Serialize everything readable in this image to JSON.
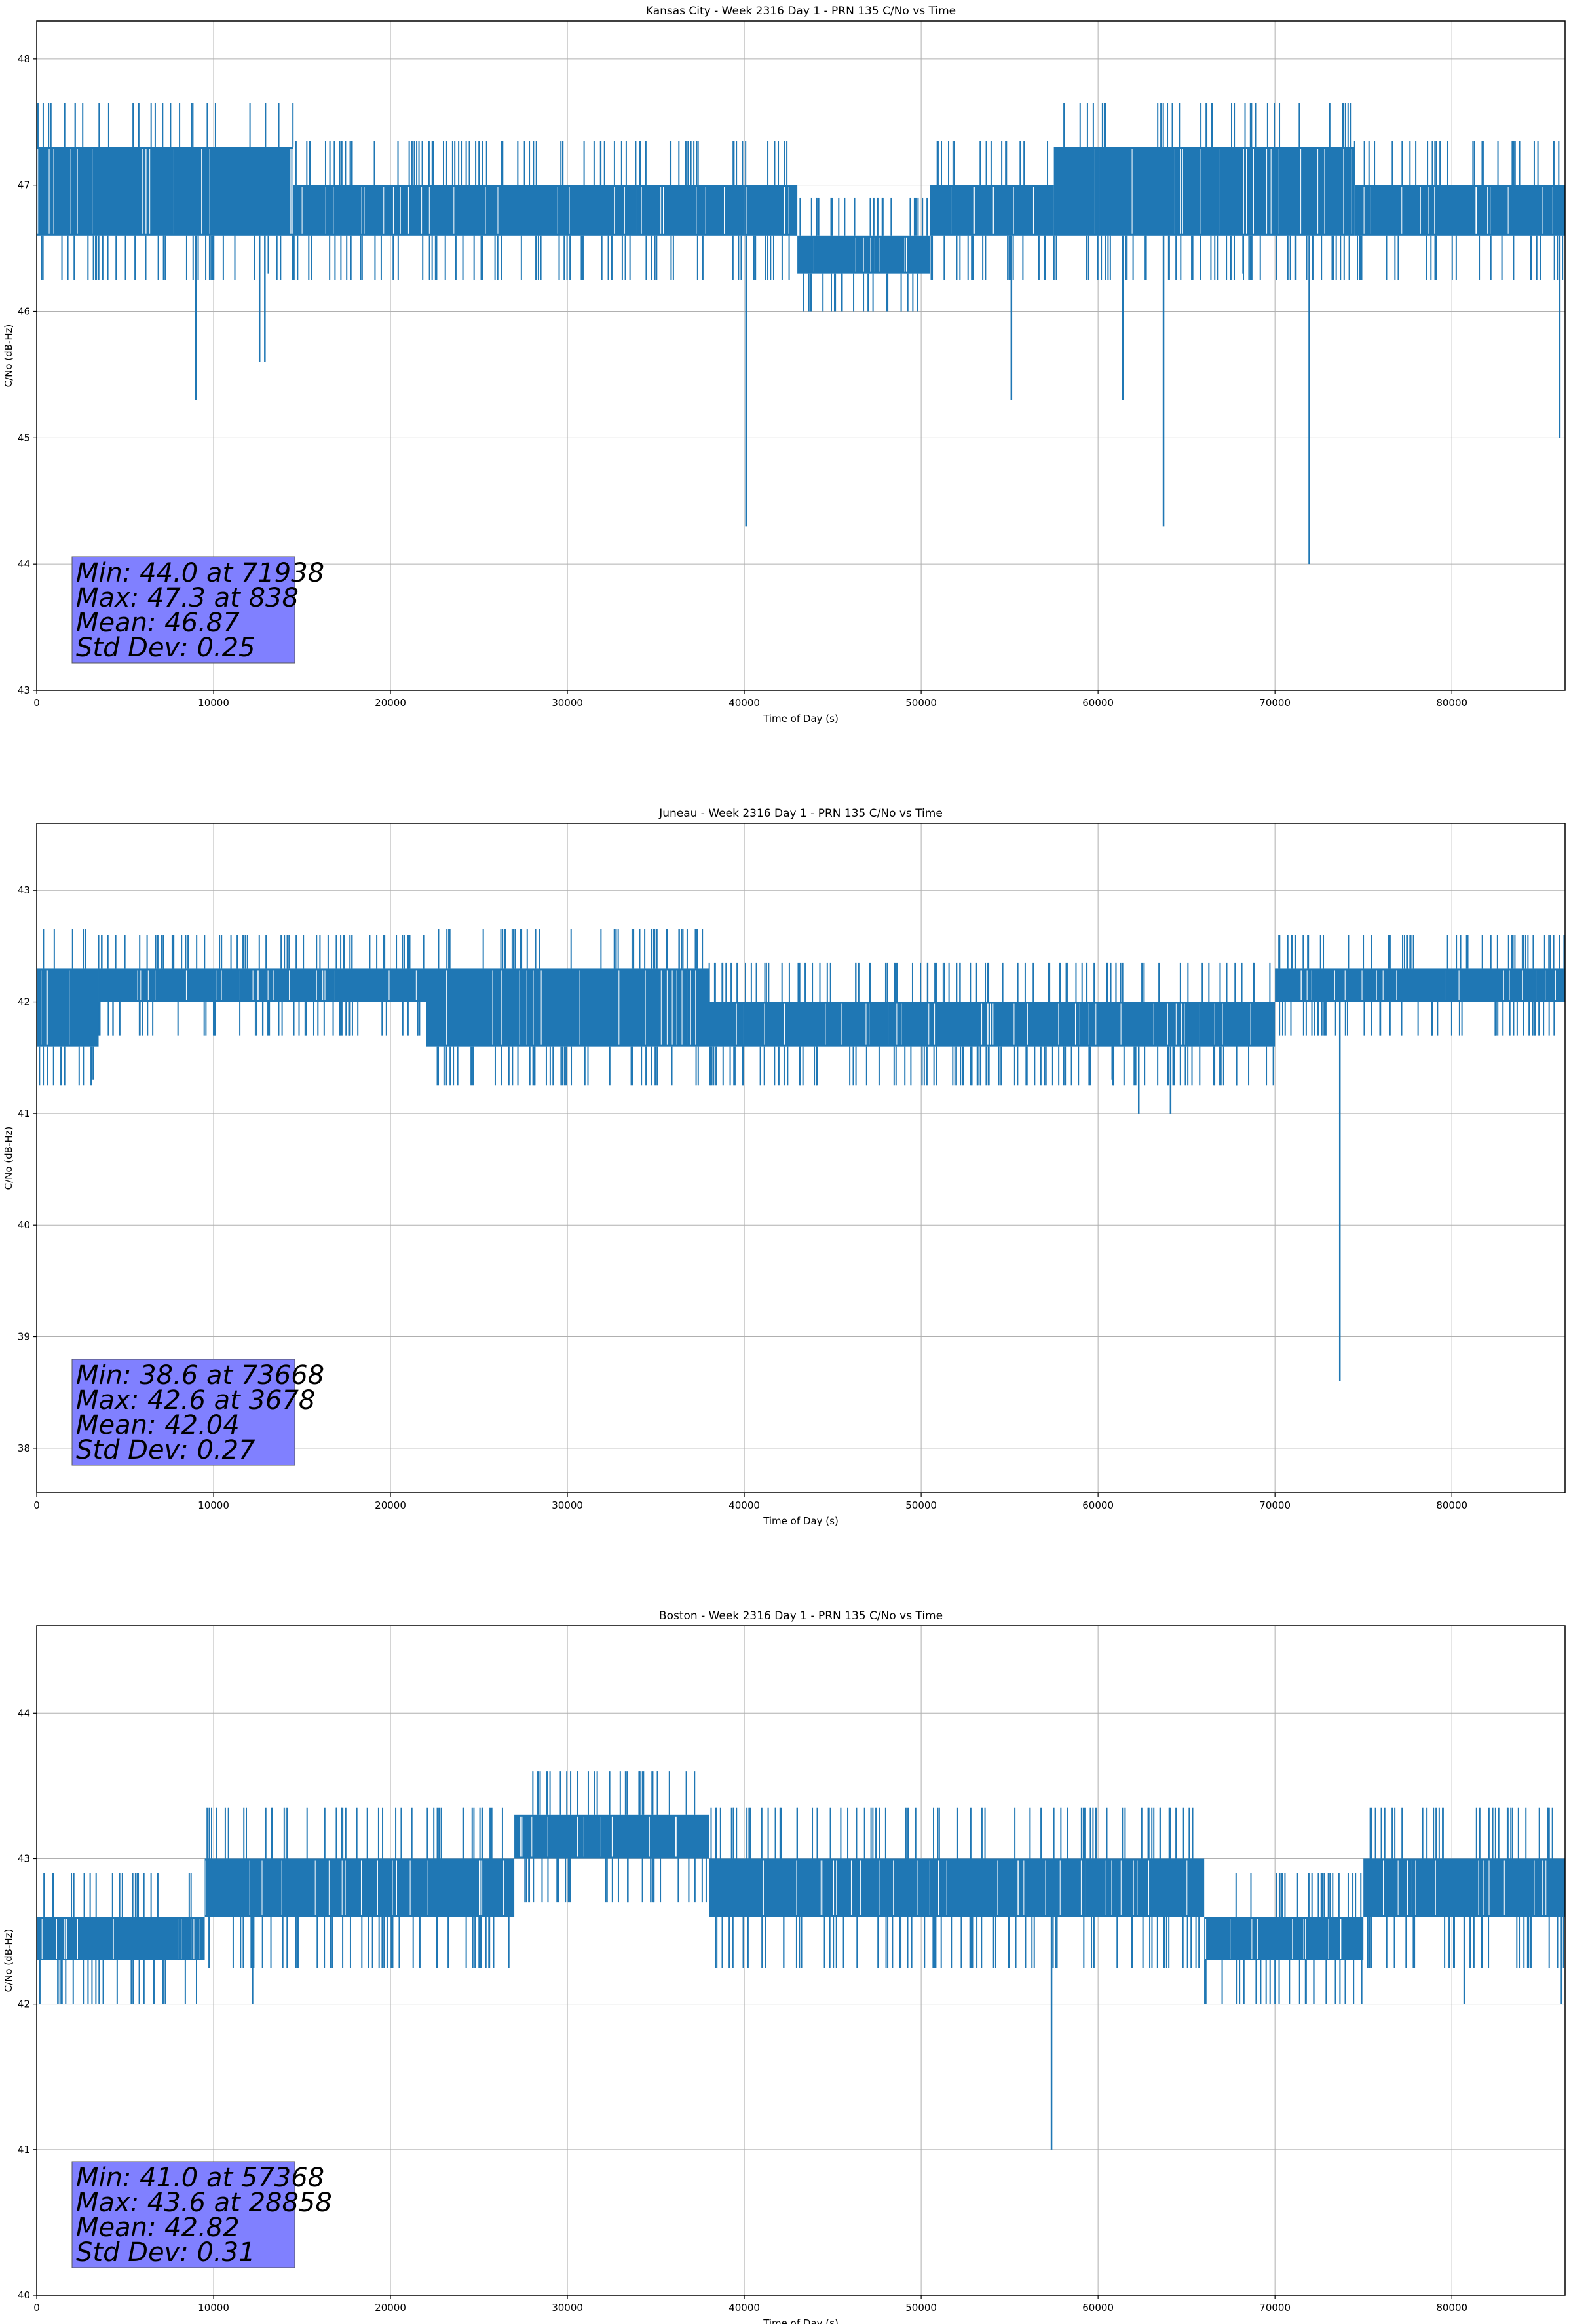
{
  "chart_data": [
    {
      "type": "line",
      "title": "Kansas City - Week 2316 Day 1 - PRN 135 C/No vs Time",
      "xlabel": "Time of Day (s)",
      "ylabel": "C/No (dB-Hz)",
      "xlim": [
        0,
        86400
      ],
      "ylim": [
        43,
        48.3
      ],
      "xticks": [
        0,
        10000,
        20000,
        30000,
        40000,
        50000,
        60000,
        70000,
        80000
      ],
      "yticks": [
        43,
        44,
        45,
        46,
        47,
        48
      ],
      "grid": true,
      "series_color": "#1f77b4",
      "stats_box_color": "#8080ff",
      "stats": [
        "Min: 44.0 at 71938",
        "Max: 47.3 at 838",
        "Mean: 46.87",
        "Std Dev: 0.25"
      ],
      "bands": [
        {
          "x": [
            0,
            14500
          ],
          "range": [
            46.6,
            47.3
          ]
        },
        {
          "x": [
            14500,
            40000
          ],
          "range": [
            46.6,
            47.0
          ]
        },
        {
          "x": [
            40000,
            43000
          ],
          "range": [
            46.6,
            47.0
          ]
        },
        {
          "x": [
            43000,
            50500
          ],
          "range": [
            46.3,
            46.6
          ]
        },
        {
          "x": [
            50500,
            57500
          ],
          "range": [
            46.6,
            47.0
          ]
        },
        {
          "x": [
            57500,
            74500
          ],
          "range": [
            46.6,
            47.3
          ]
        },
        {
          "x": [
            74500,
            86400
          ],
          "range": [
            46.6,
            47.0
          ]
        }
      ],
      "spikes": [
        {
          "x": 838,
          "y": 47.3
        },
        {
          "x": 9000,
          "y": 45.3
        },
        {
          "x": 12600,
          "y": 45.6
        },
        {
          "x": 12900,
          "y": 45.6
        },
        {
          "x": 13100,
          "y": 46.3
        },
        {
          "x": 40100,
          "y": 44.3
        },
        {
          "x": 45500,
          "y": 46.0
        },
        {
          "x": 55100,
          "y": 45.3
        },
        {
          "x": 61400,
          "y": 45.3
        },
        {
          "x": 63700,
          "y": 44.3
        },
        {
          "x": 68200,
          "y": 46.3
        },
        {
          "x": 71938,
          "y": 44.0
        },
        {
          "x": 86100,
          "y": 45.0
        }
      ]
    },
    {
      "type": "line",
      "title": "Juneau - Week 2316 Day 1 - PRN 135 C/No vs Time",
      "xlabel": "Time of Day (s)",
      "ylabel": "C/No (dB-Hz)",
      "xlim": [
        0,
        86400
      ],
      "ylim": [
        37.6,
        43.6
      ],
      "xticks": [
        0,
        10000,
        20000,
        30000,
        40000,
        50000,
        60000,
        70000,
        80000
      ],
      "yticks": [
        38,
        39,
        40,
        41,
        42,
        43
      ],
      "grid": true,
      "series_color": "#1f77b4",
      "stats_box_color": "#8080ff",
      "stats": [
        "Min: 38.6 at 73668",
        "Max: 42.6 at 3678",
        "Mean: 42.04",
        "Std Dev: 0.27"
      ],
      "bands": [
        {
          "x": [
            0,
            3500
          ],
          "range": [
            41.6,
            42.3
          ]
        },
        {
          "x": [
            3500,
            22000
          ],
          "range": [
            42.0,
            42.3
          ]
        },
        {
          "x": [
            22000,
            38000
          ],
          "range": [
            41.6,
            42.3
          ]
        },
        {
          "x": [
            38000,
            70000
          ],
          "range": [
            41.6,
            42.0
          ]
        },
        {
          "x": [
            70000,
            86400
          ],
          "range": [
            42.0,
            42.3
          ]
        }
      ],
      "spikes": [
        {
          "x": 3678,
          "y": 42.6
        },
        {
          "x": 3200,
          "y": 41.3
        },
        {
          "x": 60800,
          "y": 41.3
        },
        {
          "x": 62300,
          "y": 41.0
        },
        {
          "x": 64100,
          "y": 41.0
        },
        {
          "x": 73668,
          "y": 38.6
        }
      ]
    },
    {
      "type": "line",
      "title": "Boston - Week 2316 Day 1 - PRN 135 C/No vs Time",
      "xlabel": "Time of Day (s)",
      "ylabel": "C/No (dB-Hz)",
      "xlim": [
        0,
        86400
      ],
      "ylim": [
        40,
        44.6
      ],
      "xticks": [
        0,
        10000,
        20000,
        30000,
        40000,
        50000,
        60000,
        70000,
        80000
      ],
      "yticks": [
        40,
        41,
        42,
        43,
        44
      ],
      "grid": true,
      "series_color": "#1f77b4",
      "stats_box_color": "#8080ff",
      "stats": [
        "Min: 41.0 at 57368",
        "Max: 43.6 at 28858",
        "Mean: 42.82",
        "Std Dev: 0.31"
      ],
      "bands": [
        {
          "x": [
            0,
            9500
          ],
          "range": [
            42.3,
            42.6
          ]
        },
        {
          "x": [
            9500,
            27000
          ],
          "range": [
            42.6,
            43.0
          ]
        },
        {
          "x": [
            27000,
            38000
          ],
          "range": [
            43.0,
            43.3
          ]
        },
        {
          "x": [
            38000,
            66000
          ],
          "range": [
            42.6,
            43.0
          ]
        },
        {
          "x": [
            66000,
            75000
          ],
          "range": [
            42.3,
            42.6
          ]
        },
        {
          "x": [
            75000,
            86400
          ],
          "range": [
            42.6,
            43.0
          ]
        }
      ],
      "spikes": [
        {
          "x": 28858,
          "y": 43.6
        },
        {
          "x": 1200,
          "y": 42.0
        },
        {
          "x": 12200,
          "y": 42.0
        },
        {
          "x": 57368,
          "y": 41.0
        },
        {
          "x": 80700,
          "y": 42.0
        },
        {
          "x": 86200,
          "y": 42.0
        }
      ]
    }
  ]
}
